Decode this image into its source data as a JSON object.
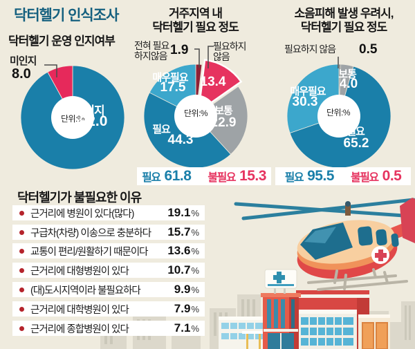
{
  "page": {
    "title": "닥터헬기 인식조사"
  },
  "chart_data": [
    {
      "type": "pie",
      "id": "awareness",
      "title": "닥터헬기 운영 인지여부",
      "title_lines": [
        "닥터헬기 운영 인지여부"
      ],
      "unit": "단위:%",
      "slices": [
        {
          "label": "인지",
          "value": 92.0,
          "display": "92.0",
          "color": "#1a7fa9"
        },
        {
          "label": "미인지",
          "value": 8.0,
          "display": "8.0",
          "color": "#e6295b"
        }
      ]
    },
    {
      "type": "pie",
      "id": "need-in-residence",
      "title": "거주지역 내 닥터헬기 필요 정도",
      "title_lines": [
        "거주지역 내",
        "닥터헬기 필요 정도"
      ],
      "unit": "단위:%",
      "slices": [
        {
          "label": "전혀 필요하지않음",
          "callout_lines": [
            "전혀 필요",
            "하지않음"
          ],
          "value": 1.9,
          "display": "1.9",
          "color": "#8e2136"
        },
        {
          "label": "필요하지 않음",
          "callout_lines": [
            "필요하지",
            "않음"
          ],
          "value": 13.4,
          "display": "13.4",
          "color": "#e6335f",
          "exploded": true
        },
        {
          "label": "보통",
          "value": 22.9,
          "display": "22.9",
          "color": "#9ea3a6"
        },
        {
          "label": "필요",
          "value": 44.3,
          "display": "44.3",
          "color": "#1a7fa9"
        },
        {
          "label": "매우필요",
          "value": 17.5,
          "display": "17.5",
          "color": "#3ca7cc"
        }
      ],
      "summary": {
        "positive_label": "필요",
        "positive_value": "61.8",
        "negative_label": "불필요",
        "negative_value": "15.3"
      }
    },
    {
      "type": "pie",
      "id": "need-under-noise",
      "title": "소음피해 발생 우려시, 닥터헬기 필요 정도",
      "title_lines": [
        "소음피해 발생 우려시,",
        "닥터헬기 필요 정도"
      ],
      "unit": "단위:%",
      "slices": [
        {
          "label": "필요하지 않음",
          "value": 0.5,
          "display": "0.5",
          "color": "#59636a"
        },
        {
          "label": "보통",
          "value": 4.0,
          "display": "4.0",
          "color": "#9ea3a6"
        },
        {
          "label": "필요",
          "value": 65.2,
          "display": "65.2",
          "color": "#1a7fa9"
        },
        {
          "label": "매우필요",
          "value": 30.3,
          "display": "30.3",
          "color": "#3ca7cc"
        }
      ],
      "summary": {
        "positive_label": "필요",
        "positive_value": "95.5",
        "negative_label": "불필요",
        "negative_value": "0.5"
      }
    }
  ],
  "reasons": {
    "title": "닥터헬기가 불필요한 이유",
    "items": [
      {
        "label": "근거리에 병원이 있다(많다)",
        "value": "19.1",
        "unit": "%"
      },
      {
        "label": "구급차(차량) 이송으로 충분하다",
        "value": "15.7",
        "unit": "%"
      },
      {
        "label": "교통이 편리/원활하기 때문이다",
        "value": "13.6",
        "unit": "%"
      },
      {
        "label": "근거리에 대형병원이 있다",
        "value": "10.7",
        "unit": "%"
      },
      {
        "label": "(대)도시지역이라 불필요하다",
        "value": "9.9",
        "unit": "%"
      },
      {
        "label": "근거리에 대학병원이 있다",
        "value": "7.9",
        "unit": "%"
      },
      {
        "label": "근거리에 종합병원이 있다",
        "value": "7.1",
        "unit": "%"
      }
    ]
  },
  "colors": {
    "background": "#efebde",
    "title_blue": "#15607f",
    "positive_blue": "#1a7fa9",
    "positive_light_blue": "#3ca7cc",
    "negative_red": "#e6335f",
    "neutral_gray": "#9ea3a6",
    "bullet_red": "#b5242c"
  },
  "icons": {
    "helicopter": "medical-helicopter-illustration",
    "hospital_sign": "hospital-cross-sign"
  }
}
